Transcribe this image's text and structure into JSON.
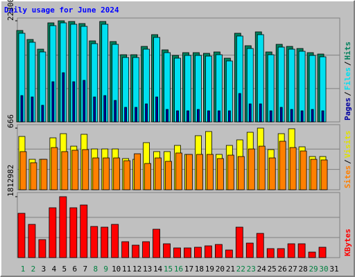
{
  "title": "Daily usage for June 2024",
  "chart_data": [
    {
      "type": "bar",
      "ylim": [
        0,
        22300
      ],
      "yticks": [
        22300
      ],
      "legend_separator": "/",
      "series": [
        {
          "name": "Pages",
          "color": "#0000a0",
          "values": [
            5804,
            5499,
            3666,
            8859,
            10845,
            8859,
            9164,
            5499,
            5804,
            4735,
            3208,
            3208,
            3971,
            5499,
            2749,
            2444,
            2444,
            2749,
            2444,
            2444,
            2444,
            6262,
            3971,
            3971,
            2444,
            3208,
            2749,
            2444,
            2749,
            2444,
            null
          ]
        },
        {
          "name": "Files",
          "color": "#00e0f0",
          "values": [
            19550,
            17565,
            15427,
            21231,
            21842,
            21536,
            21078,
            17260,
            21536,
            17107,
            14205,
            14205,
            16038,
            18634,
            15274,
            14052,
            14663,
            14663,
            14510,
            14816,
            13441,
            18940,
            16191,
            19245,
            14816,
            16496,
            16038,
            15579,
            14663,
            14357,
            null
          ]
        },
        {
          "name": "Hits",
          "color": "#00805c",
          "values": [
            20162,
            18176,
            16038,
            21842,
            22300,
            22147,
            21689,
            17871,
            22147,
            17718,
            14816,
            14816,
            16649,
            19245,
            15885,
            14663,
            15274,
            15274,
            15121,
            15427,
            14052,
            19551,
            16802,
            19856,
            15427,
            17107,
            16649,
            16190,
            15274,
            14968,
            null
          ]
        }
      ]
    },
    {
      "type": "bar",
      "ylim": [
        0,
        666
      ],
      "yticks": [
        666
      ],
      "legend_separator": "/",
      "series": [
        {
          "name": "Sites",
          "color": "#ff8000",
          "values": [
            412,
            292,
            329,
            456,
            412,
            427,
            434,
            344,
            344,
            344,
            314,
            389,
            284,
            344,
            307,
            397,
            382,
            382,
            382,
            337,
            374,
            359,
            441,
            471,
            344,
            524,
            456,
            419,
            329,
            322,
            null
          ]
        },
        {
          "name": "Visits",
          "color": "#ffff00",
          "values": [
            576,
            329,
            329,
            561,
            606,
            471,
            599,
            441,
            441,
            441,
            337,
            329,
            509,
            412,
            412,
            479,
            382,
            584,
            629,
            382,
            479,
            539,
            621,
            666,
            434,
            606,
            659,
            464,
            359,
            359,
            null
          ]
        }
      ]
    },
    {
      "type": "bar",
      "ylim": [
        0,
        1812982
      ],
      "yticks": [
        1812982
      ],
      "categories": [
        "1",
        "2",
        "3",
        "4",
        "5",
        "6",
        "7",
        "8",
        "9",
        "10",
        "11",
        "12",
        "13",
        "14",
        "15",
        "16",
        "17",
        "18",
        "19",
        "20",
        "21",
        "22",
        "23",
        "24",
        "25",
        "26",
        "27",
        "28",
        "29",
        "30",
        "31"
      ],
      "category_colors": [
        "#008040",
        "#008040",
        "#000000",
        "#000000",
        "#000000",
        "#000000",
        "#000000",
        "#008040",
        "#008040",
        "#000000",
        "#000000",
        "#000000",
        "#000000",
        "#000000",
        "#008040",
        "#008040",
        "#000000",
        "#000000",
        "#000000",
        "#000000",
        "#000000",
        "#008040",
        "#008040",
        "#000000",
        "#000000",
        "#000000",
        "#000000",
        "#000000",
        "#008040",
        "#008040",
        "#000000"
      ],
      "series": [
        {
          "name": "KBytes",
          "color": "#ff0000",
          "values": [
            1318532,
            988899,
            535654,
            1483349,
            1812982,
            1483349,
            1565757,
            927093,
            906491,
            988899,
            473847,
            370837,
            473847,
            844685,
            412041,
            288429,
            288429,
            309031,
            350236,
            391440,
            226623,
            906491,
            432643,
            721073,
            267827,
            267827,
            412041,
            412041,
            164817,
            309031,
            null
          ]
        }
      ]
    }
  ]
}
